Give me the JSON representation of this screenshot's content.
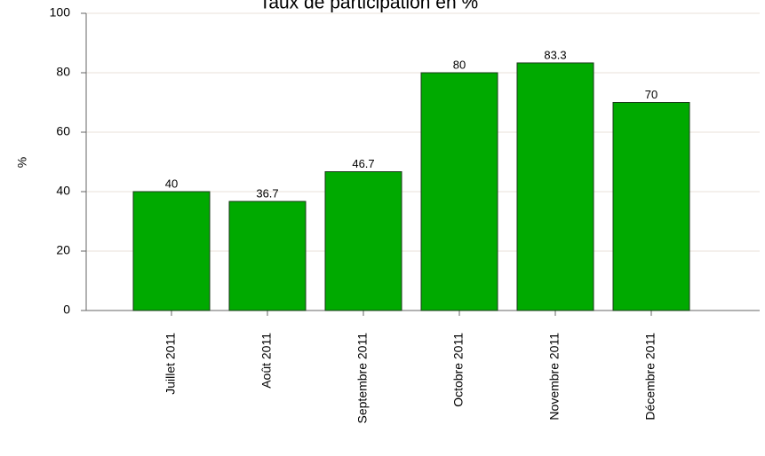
{
  "chart_data": {
    "type": "bar",
    "title": "Taux de participation en %",
    "ylabel": "%",
    "categories": [
      "Juillet 2011",
      "Août 2011",
      "Septembre 2011",
      "Octobre 2011",
      "Novembre 2011",
      "Décembre 2011"
    ],
    "values": [
      40,
      36.7,
      46.7,
      80,
      83.3,
      70
    ],
    "color": "#00aa00",
    "ylim": [
      0,
      100
    ],
    "yticks": [
      0,
      20,
      40,
      60,
      80,
      100
    ],
    "grid": true
  }
}
